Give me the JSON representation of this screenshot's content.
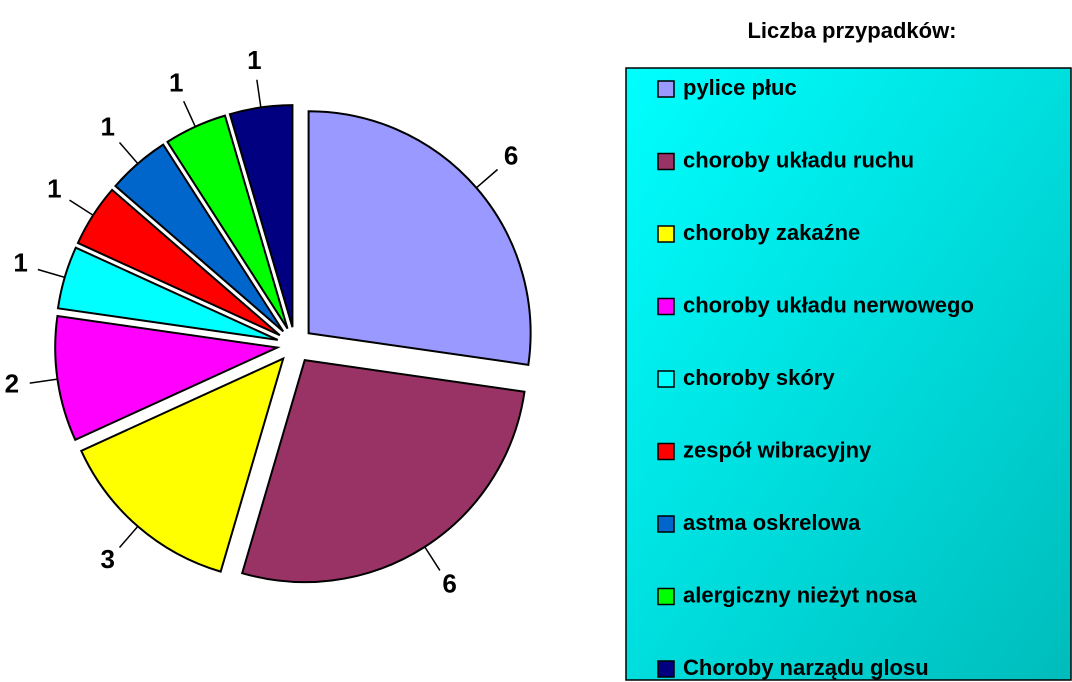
{
  "chart_data": {
    "type": "pie",
    "legend_title": "Liczba przypadków:",
    "categories": [
      "pylice płuc",
      "choroby układu ruchu",
      "choroby zakaźne",
      "choroby układu nerwowego",
      "choroby skóry",
      "zespół wibracyjny",
      "astma oskrelowa",
      "alergiczny nieżyt nosa",
      "Choroby narządu glosu"
    ],
    "values": [
      6,
      6,
      3,
      2,
      1,
      1,
      1,
      1,
      1
    ],
    "colors": [
      "#9999ff",
      "#993366",
      "#ffff00",
      "#ff00ff",
      "#00ffff",
      "#ff0000",
      "#0066cc",
      "#00ff00",
      "#000080"
    ],
    "legend": "right"
  }
}
